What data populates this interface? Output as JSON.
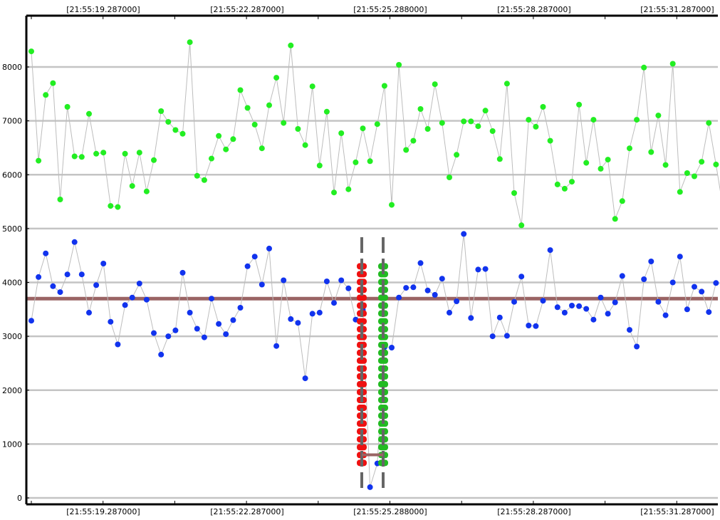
{
  "colors": {
    "background": "#ffffff",
    "axis": "#000000",
    "grid": "#c4c4c4",
    "connector_line": "#bdbdbd",
    "green_series": "#22ee22",
    "blue_series": "#1133ee",
    "baseline": "#9a6464",
    "red_markers": "#ee1111",
    "green_markers": "#22bb22",
    "dashed_guides": "#666666"
  },
  "chart_data": {
    "type": "scatter",
    "title": "",
    "xlabel": "",
    "ylabel": "",
    "x_ticks": [
      "[21:55:19.287000]",
      "[21:55:22.287000]",
      "[21:55:25.288000]",
      "[21:55:28.287000]",
      "[21:55:31.287000]"
    ],
    "y_ticks": [
      0,
      1000,
      2000,
      3000,
      4000,
      5000,
      6000,
      7000,
      8000
    ],
    "ylim": [
      -100,
      9000
    ],
    "grid": true,
    "legend": "none",
    "series": [
      {
        "color": "green",
        "values": [
          8290,
          6260,
          7480,
          7700,
          5540,
          7260,
          6340,
          6330,
          7130,
          6390,
          6410,
          5420,
          5400,
          6390,
          5790,
          6410,
          5690,
          6270,
          7180,
          6980,
          6830,
          6760,
          8460,
          5980,
          5900,
          6300,
          6720,
          6470,
          6660,
          7570,
          7240,
          6930,
          6490,
          7290,
          7800,
          6960,
          8400,
          6850,
          6550,
          7640,
          6170,
          7170,
          5670,
          6770,
          5730,
          6230,
          6860,
          6250,
          6940,
          7650,
          5440,
          8040,
          6460,
          6630,
          7220,
          6850,
          7680,
          6960,
          5950,
          6370,
          6990,
          6990,
          6900,
          7190,
          6810,
          6290,
          7690,
          5660,
          5060,
          7020,
          6890,
          7260,
          6630,
          5820,
          5740,
          5870,
          7300,
          6220,
          7020,
          6110,
          6280,
          5180,
          5510,
          6490,
          7020,
          7990,
          6420,
          7100,
          6180,
          8060,
          5680,
          6030,
          5970,
          6240,
          6960,
          6190,
          5360
        ]
      },
      {
        "color": "blue",
        "values": [
          3290,
          4100,
          4540,
          3930,
          3820,
          4150,
          4750,
          4150,
          3440,
          3950,
          4350,
          3270,
          2850,
          3580,
          3720,
          3980,
          3680,
          3060,
          2660,
          3000,
          3110,
          4180,
          3440,
          3140,
          2980,
          3700,
          3230,
          3040,
          3300,
          3530,
          4300,
          4480,
          3960,
          4630,
          2820,
          4040,
          3320,
          3250,
          2220,
          3420,
          3440,
          4020,
          3620,
          4040,
          3890,
          3310,
          3490,
          200,
          640,
          2800,
          2790,
          3720,
          3900,
          3910,
          4360,
          3850,
          3770,
          4070,
          3440,
          3650,
          4900,
          3340,
          4240,
          4250,
          3000,
          3350,
          3010,
          3640,
          4110,
          3200,
          3190,
          3660,
          4600,
          3540,
          3440,
          3570,
          3560,
          3510,
          3310,
          3720,
          3420,
          3630,
          4120,
          3120,
          2810,
          4060,
          4390,
          3640,
          3390,
          4000,
          4480,
          3500,
          3920,
          3830,
          3450,
          3990,
          3990
        ]
      }
    ],
    "baseline_value": 3700,
    "segment_marker_value": 800,
    "marker_range": [
      650,
      4300
    ],
    "marker_count": 26
  }
}
